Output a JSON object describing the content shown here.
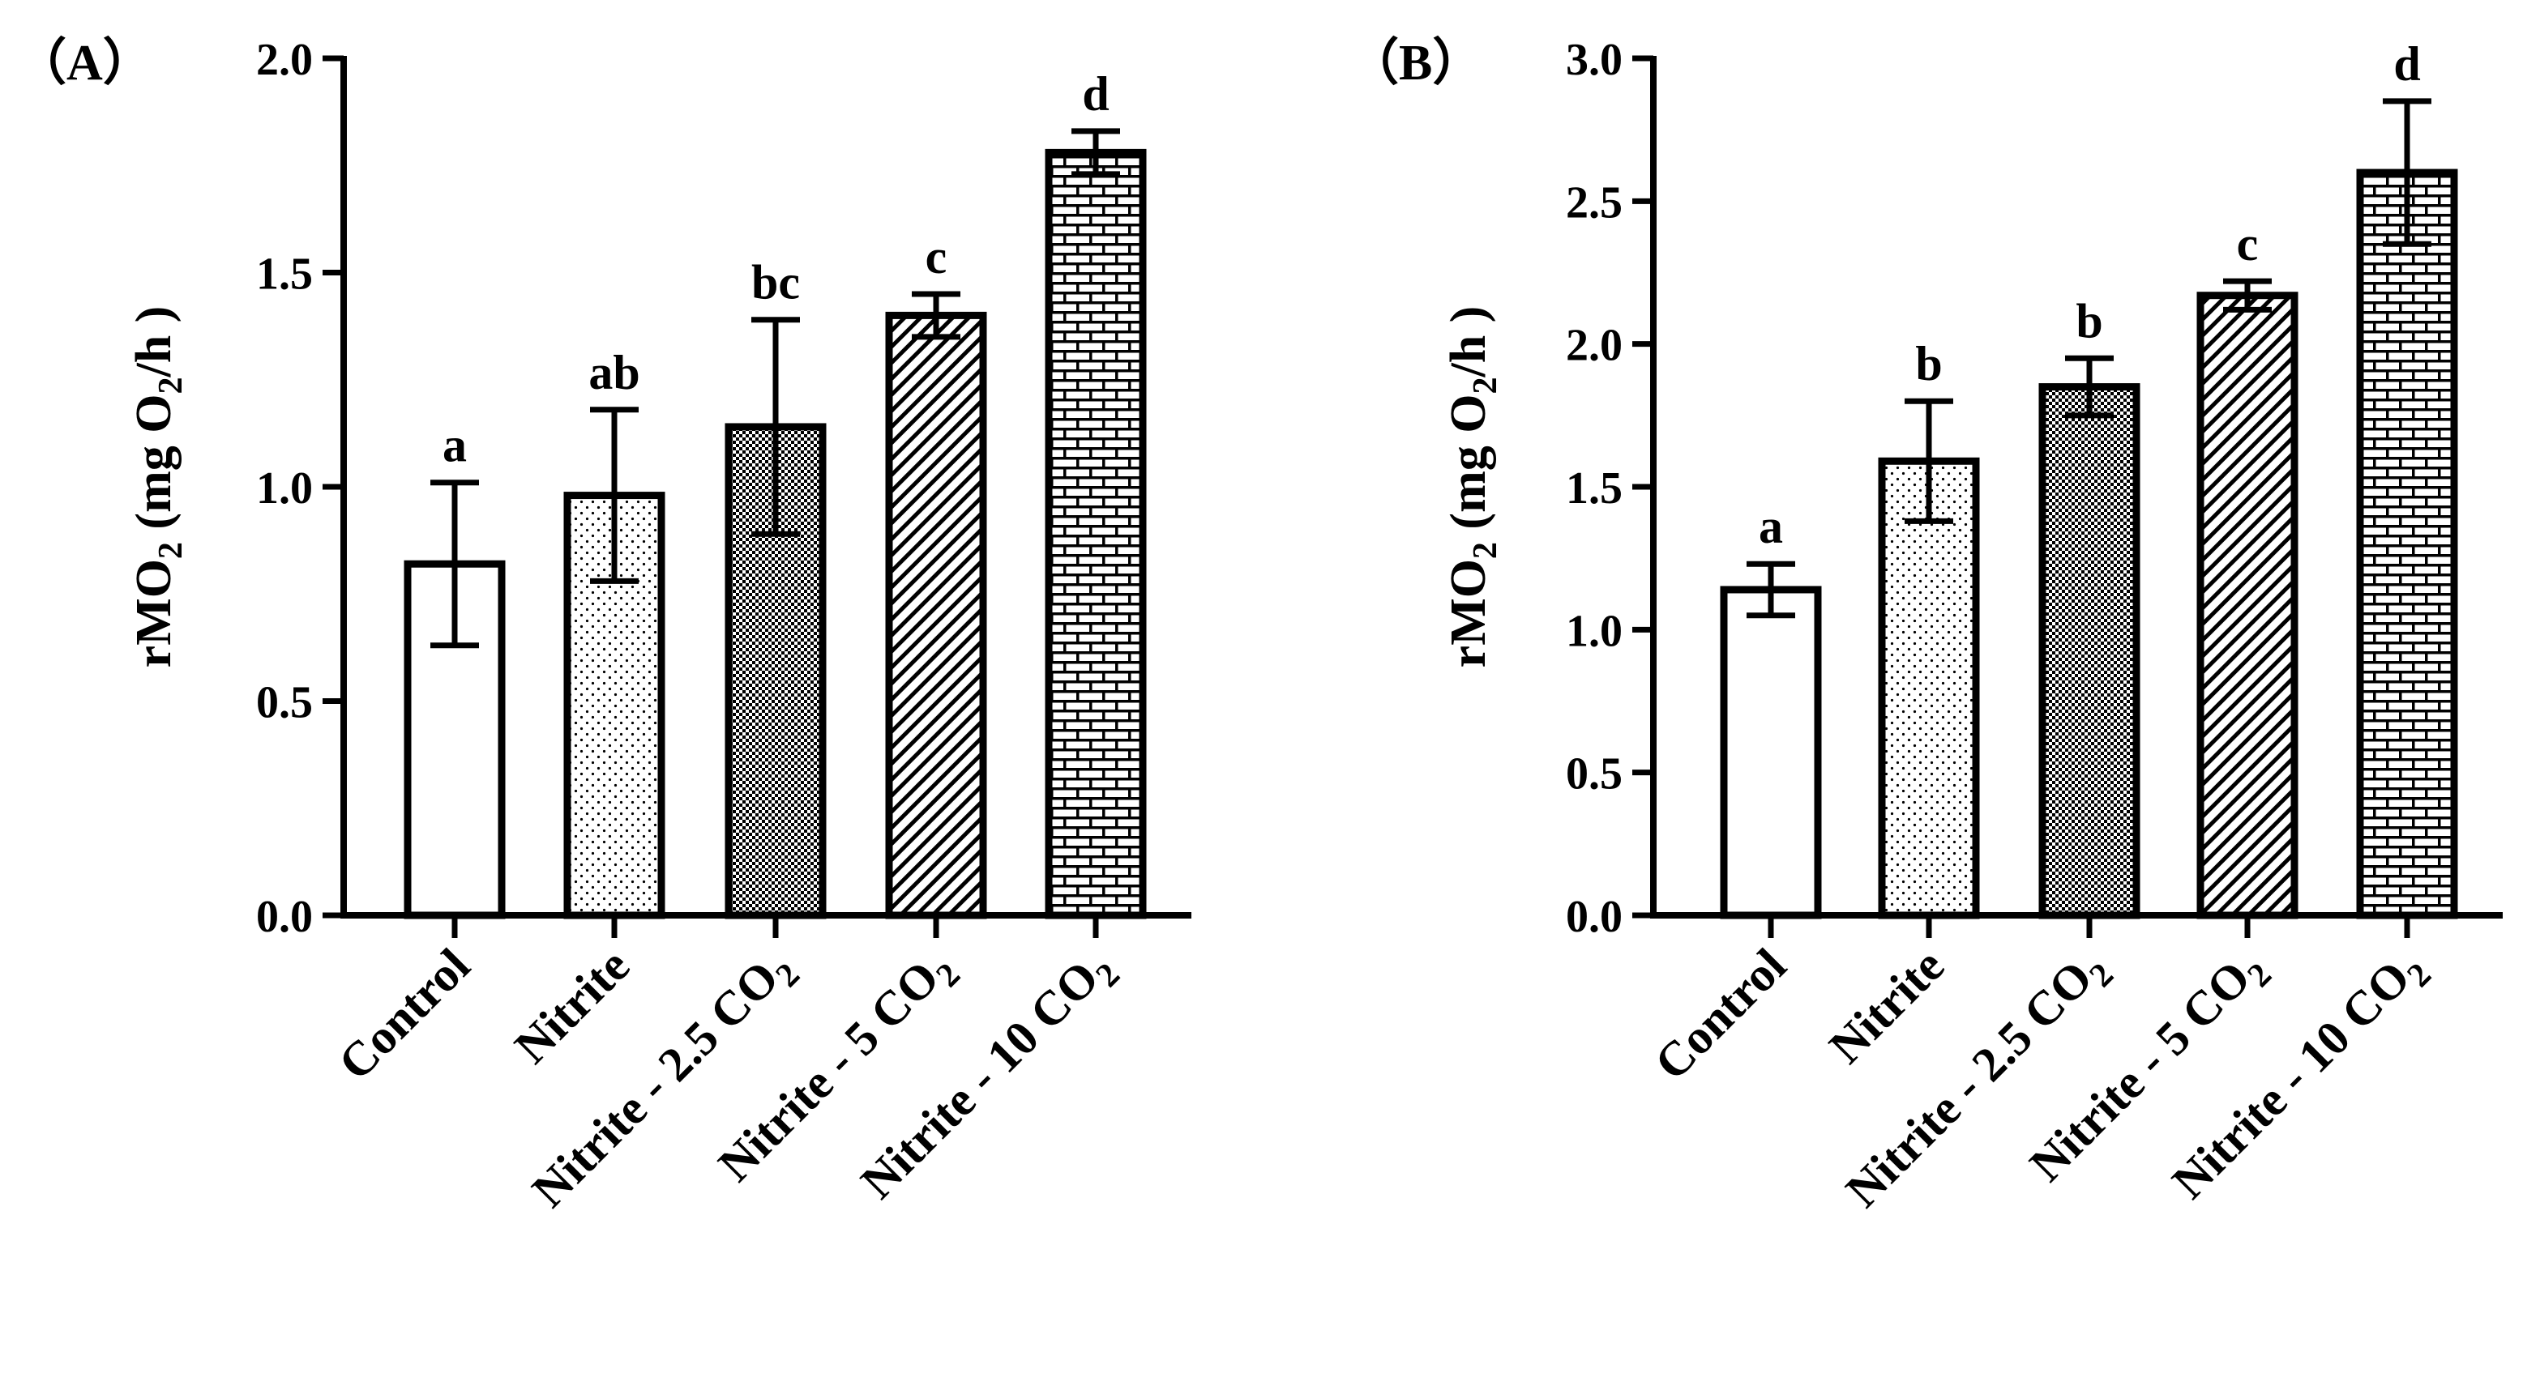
{
  "chart_data": [
    {
      "type": "bar",
      "panel_label": "（A）",
      "ylabel_prefix": "rMO",
      "ylabel_sub1": "2",
      "ylabel_unit_open": " (mg O",
      "ylabel_sub2": "2",
      "ylabel_unit_close": "/h )",
      "ylim": [
        0,
        2.0
      ],
      "yticks": [
        "0.0",
        "0.5",
        "1.0",
        "1.5",
        "2.0"
      ],
      "ytick_values": [
        0,
        0.5,
        1.0,
        1.5,
        2.0
      ],
      "categories": [
        {
          "main": "Control",
          "sub": ""
        },
        {
          "main": "Nitrite",
          "sub": ""
        },
        {
          "main": "Nitrite - 2.5 CO",
          "sub": "2"
        },
        {
          "main": "Nitrite - 5 CO",
          "sub": "2"
        },
        {
          "main": "Nitrite - 10 CO",
          "sub": "2"
        }
      ],
      "values": [
        0.82,
        0.98,
        1.14,
        1.4,
        1.78
      ],
      "errors": [
        0.19,
        0.2,
        0.25,
        0.05,
        0.05
      ],
      "letters": [
        "a",
        "ab",
        "bc",
        "c",
        "d"
      ]
    },
    {
      "type": "bar",
      "panel_label": "（B）",
      "ylabel_prefix": "rMO",
      "ylabel_sub1": "2",
      "ylabel_unit_open": " (mg O",
      "ylabel_sub2": "2",
      "ylabel_unit_close": "/h )",
      "ylim": [
        0,
        3.0
      ],
      "yticks": [
        "0.0",
        "0.5",
        "1.0",
        "1.5",
        "2.0",
        "2.5",
        "3.0"
      ],
      "ytick_values": [
        0,
        0.5,
        1.0,
        1.5,
        2.0,
        2.5,
        3.0
      ],
      "categories": [
        {
          "main": "Control",
          "sub": ""
        },
        {
          "main": "Nitrite",
          "sub": ""
        },
        {
          "main": "Nitrite - 2.5 CO",
          "sub": "2"
        },
        {
          "main": "Nitrite - 5 CO",
          "sub": "2"
        },
        {
          "main": "Nitrite - 10 CO",
          "sub": "2"
        }
      ],
      "values": [
        1.14,
        1.59,
        1.85,
        2.17,
        2.6
      ],
      "errors": [
        0.09,
        0.21,
        0.1,
        0.05,
        0.25
      ],
      "letters": [
        "a",
        "b",
        "b",
        "c",
        "d"
      ]
    }
  ],
  "colors": {
    "ink": "#000000",
    "background": "#ffffff"
  }
}
